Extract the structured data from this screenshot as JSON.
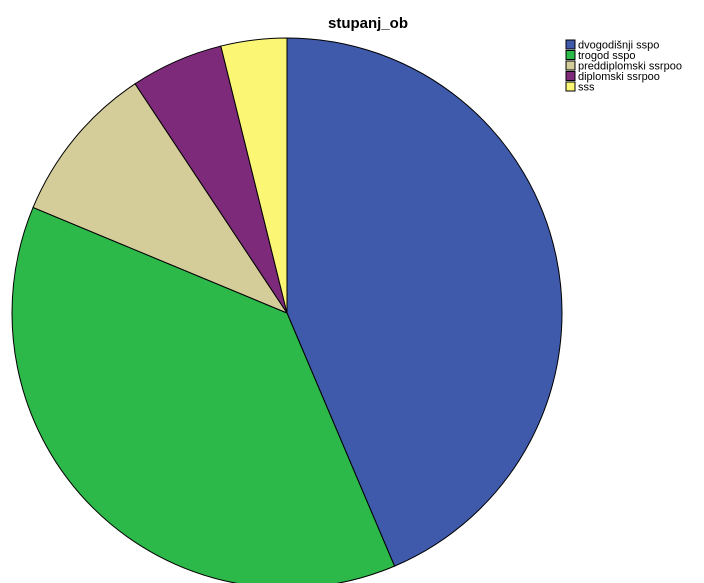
{
  "chart_data": {
    "type": "pie",
    "title": "stupanj_ob",
    "legend_position": "top-right",
    "start_angle_deg": 0,
    "direction": "clockwise",
    "slices": [
      {
        "label": "dvogodišnji sspo",
        "value": 44,
        "color": "#3f59ab"
      },
      {
        "label": "trogod sspo",
        "value": 38,
        "color": "#2db84a"
      },
      {
        "label": "preddiplomski ssrpoo",
        "value": 9.5,
        "color": "#d4cd9a"
      },
      {
        "label": "diplomski ssrpoo",
        "value": 5.5,
        "color": "#7e2a7a"
      },
      {
        "label": "sss",
        "value": 3.9,
        "color": "#fbf674"
      }
    ]
  }
}
